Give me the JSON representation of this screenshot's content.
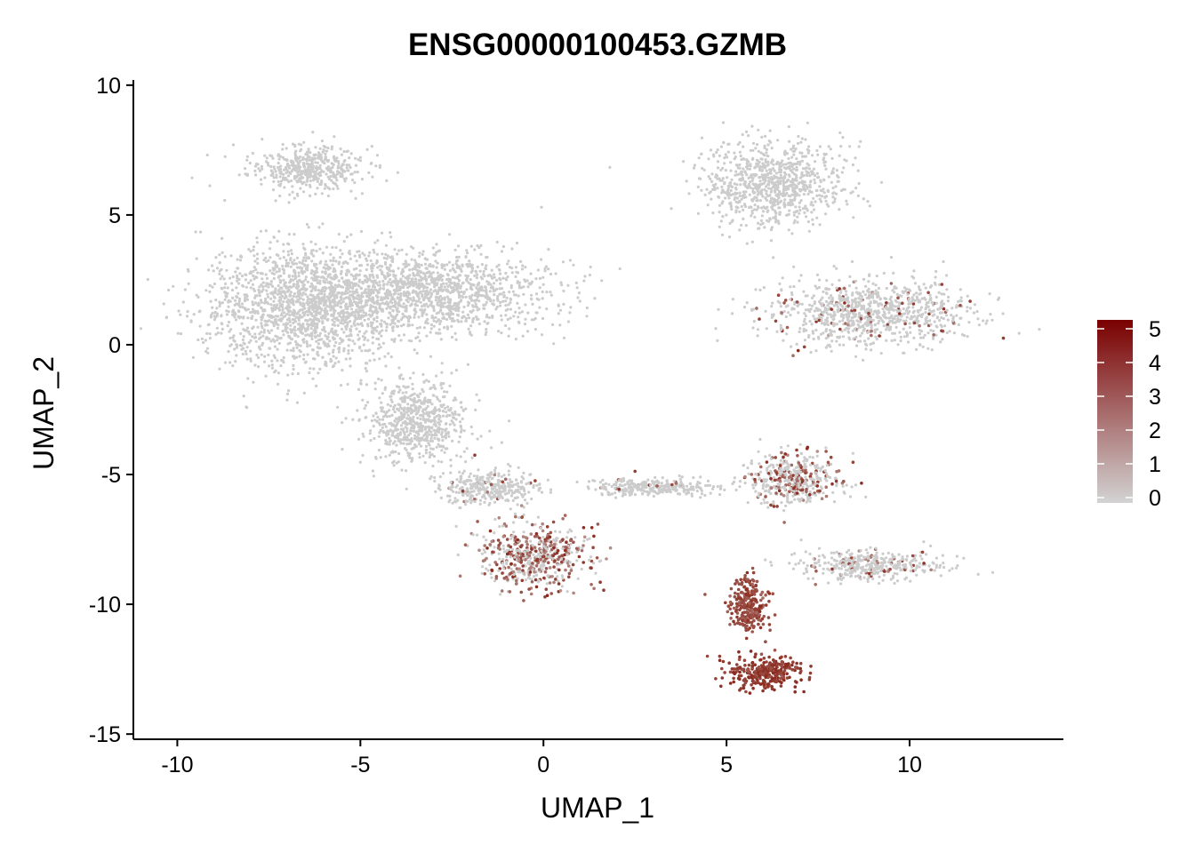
{
  "chart_data": {
    "type": "scatter",
    "title": "ENSG00000100453.GZMB",
    "xlabel": "UMAP_1",
    "ylabel": "UMAP_2",
    "xlim": [
      -11.2,
      14.2
    ],
    "ylim": [
      -15.2,
      10.2
    ],
    "x_ticks": [
      -10,
      -5,
      0,
      5,
      10
    ],
    "x_tick_labels": [
      "-10",
      "-5",
      "0",
      "5",
      "10"
    ],
    "y_ticks": [
      -15,
      -10,
      -5,
      0,
      5,
      10
    ],
    "y_tick_labels": [
      "-15",
      "-10",
      "-5",
      "0",
      "5",
      "10"
    ],
    "grid": false,
    "legend": {
      "placement": "right",
      "type": "colorbar",
      "min": 0,
      "max": 5,
      "ticks": [
        0,
        1,
        2,
        3,
        4,
        5
      ],
      "tick_labels": [
        "0",
        "1",
        "2",
        "3",
        "4",
        "5"
      ],
      "low_color": "#d3d3d3",
      "high_color": "#7a0000"
    },
    "colors": {
      "unexpressed": "#cccccc",
      "mid": "#b04a38",
      "high": "#8b2a1e"
    },
    "clusters": [
      {
        "center": [
          -6.5,
          6.8
        ],
        "spread": [
          1.4,
          0.8
        ],
        "expression": 0.0
      },
      {
        "center": [
          -6.5,
          1.5
        ],
        "spread": [
          2.6,
          2.1
        ],
        "expression": 0.0
      },
      {
        "center": [
          -3.0,
          2.0
        ],
        "spread": [
          2.8,
          1.4
        ],
        "expression": 0.0
      },
      {
        "center": [
          -3.5,
          -3.0
        ],
        "spread": [
          1.3,
          1.4
        ],
        "expression": 0.0
      },
      {
        "center": [
          -1.5,
          -5.5
        ],
        "spread": [
          1.2,
          0.6
        ],
        "expression": 0.05
      },
      {
        "center": [
          -0.3,
          -8.2
        ],
        "spread": [
          1.3,
          1.1
        ],
        "expression": 0.6
      },
      {
        "center": [
          6.3,
          6.2
        ],
        "spread": [
          1.7,
          1.5
        ],
        "expression": 0.0
      },
      {
        "center": [
          9.0,
          1.2
        ],
        "spread": [
          2.5,
          1.1
        ],
        "expression": 0.08
      },
      {
        "center": [
          6.0,
          -12.6
        ],
        "spread": [
          0.95,
          0.55
        ],
        "expression": 3.6
      },
      {
        "center": [
          5.6,
          -10.0
        ],
        "spread": [
          0.45,
          0.9
        ],
        "expression": 3.2
      },
      {
        "center": [
          6.8,
          -5.2
        ],
        "spread": [
          1.2,
          0.9
        ],
        "expression": 0.3
      },
      {
        "center": [
          9.0,
          -8.5
        ],
        "spread": [
          1.8,
          0.5
        ],
        "expression": 0.1
      },
      {
        "center": [
          3.0,
          -5.5
        ],
        "spread": [
          1.6,
          0.3
        ],
        "expression": 0.05
      }
    ]
  }
}
